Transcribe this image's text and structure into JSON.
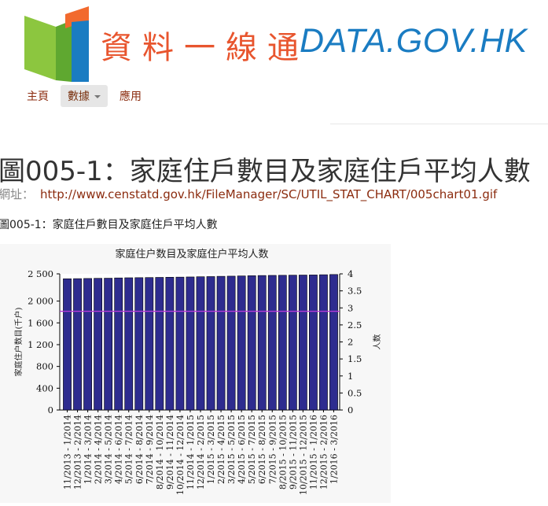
{
  "site": {
    "logo_cn": "資料一線通",
    "logo_en": "DATA.GOV.HK"
  },
  "nav": {
    "items": [
      {
        "label": "主頁"
      },
      {
        "label": "數據"
      },
      {
        "label": "應用"
      }
    ]
  },
  "page": {
    "title": "圖005-1：家庭住戶數目及家庭住戶平均人數",
    "url_label": "網址：",
    "url": "http://www.censtatd.gov.hk/FileManager/SC/UTIL_STAT_CHART/005chart01.gif",
    "caption": "圖005-1：家庭住戶數目及家庭住戶平均人數"
  },
  "colors": {
    "accent": "#8b2b0e",
    "bar": "#2e2c8f",
    "line": "#b43cd8"
  },
  "chart_data": {
    "type": "bar",
    "title": "家庭住户数目及家庭住户平均人数",
    "ylabel": "家庭住户数目(千户)",
    "y2label": "人数",
    "ylim": [
      0,
      2500
    ],
    "y2lim": [
      0,
      4
    ],
    "yticks": [
      "0",
      "400",
      "800",
      "1 200",
      "1 600",
      "2 000",
      "2 500"
    ],
    "y2ticks": [
      "0",
      "0.5",
      "1",
      "1.5",
      "2",
      "2.5",
      "3",
      "3.5",
      "4"
    ],
    "categories": [
      "11/2013 - 1/2014",
      "12/2013 - 2/2014",
      "1/2014 - 3/2014",
      "2/2014 - 4/2014",
      "3/2014 - 5/2014",
      "4/2014 - 6/2014",
      "5/2014 - 7/2014",
      "6/2014 - 8/2014",
      "7/2014 - 9/2014",
      "8/2014 - 10/2014",
      "9/2014 - 11/2014",
      "10/2014 - 12/2014",
      "11/2014 - 1/2015",
      "12/2014 - 2/2015",
      "1/2015 - 3/2015",
      "2/2015 - 4/2015",
      "3/2015 - 5/2015",
      "4/2015 - 6/2015",
      "5/2015 - 7/2015",
      "6/2015 - 8/2015",
      "7/2015 - 9/2015",
      "8/2015 - 10/2015",
      "9/2015 - 11/2015",
      "10/2015 - 12/2015",
      "11/2015 - 1/2016",
      "12/2015 - 2/2016",
      "1/2016 - 3/2016"
    ],
    "series": [
      {
        "values": [
          2410,
          2412,
          2415,
          2418,
          2420,
          2425,
          2428,
          2430,
          2432,
          2435,
          2438,
          2440,
          2443,
          2447,
          2450,
          2455,
          2458,
          2462,
          2466,
          2470,
          2472,
          2474,
          2476,
          2478,
          2480,
          2484,
          2488
        ],
        "axis": "left"
      },
      {
        "values": [
          2.9,
          2.9,
          2.9,
          2.9,
          2.9,
          2.9,
          2.9,
          2.9,
          2.9,
          2.9,
          2.9,
          2.9,
          2.9,
          2.9,
          2.9,
          2.9,
          2.9,
          2.9,
          2.9,
          2.9,
          2.9,
          2.9,
          2.9,
          2.9,
          2.9,
          2.9,
          2.9
        ],
        "axis": "right"
      }
    ]
  }
}
